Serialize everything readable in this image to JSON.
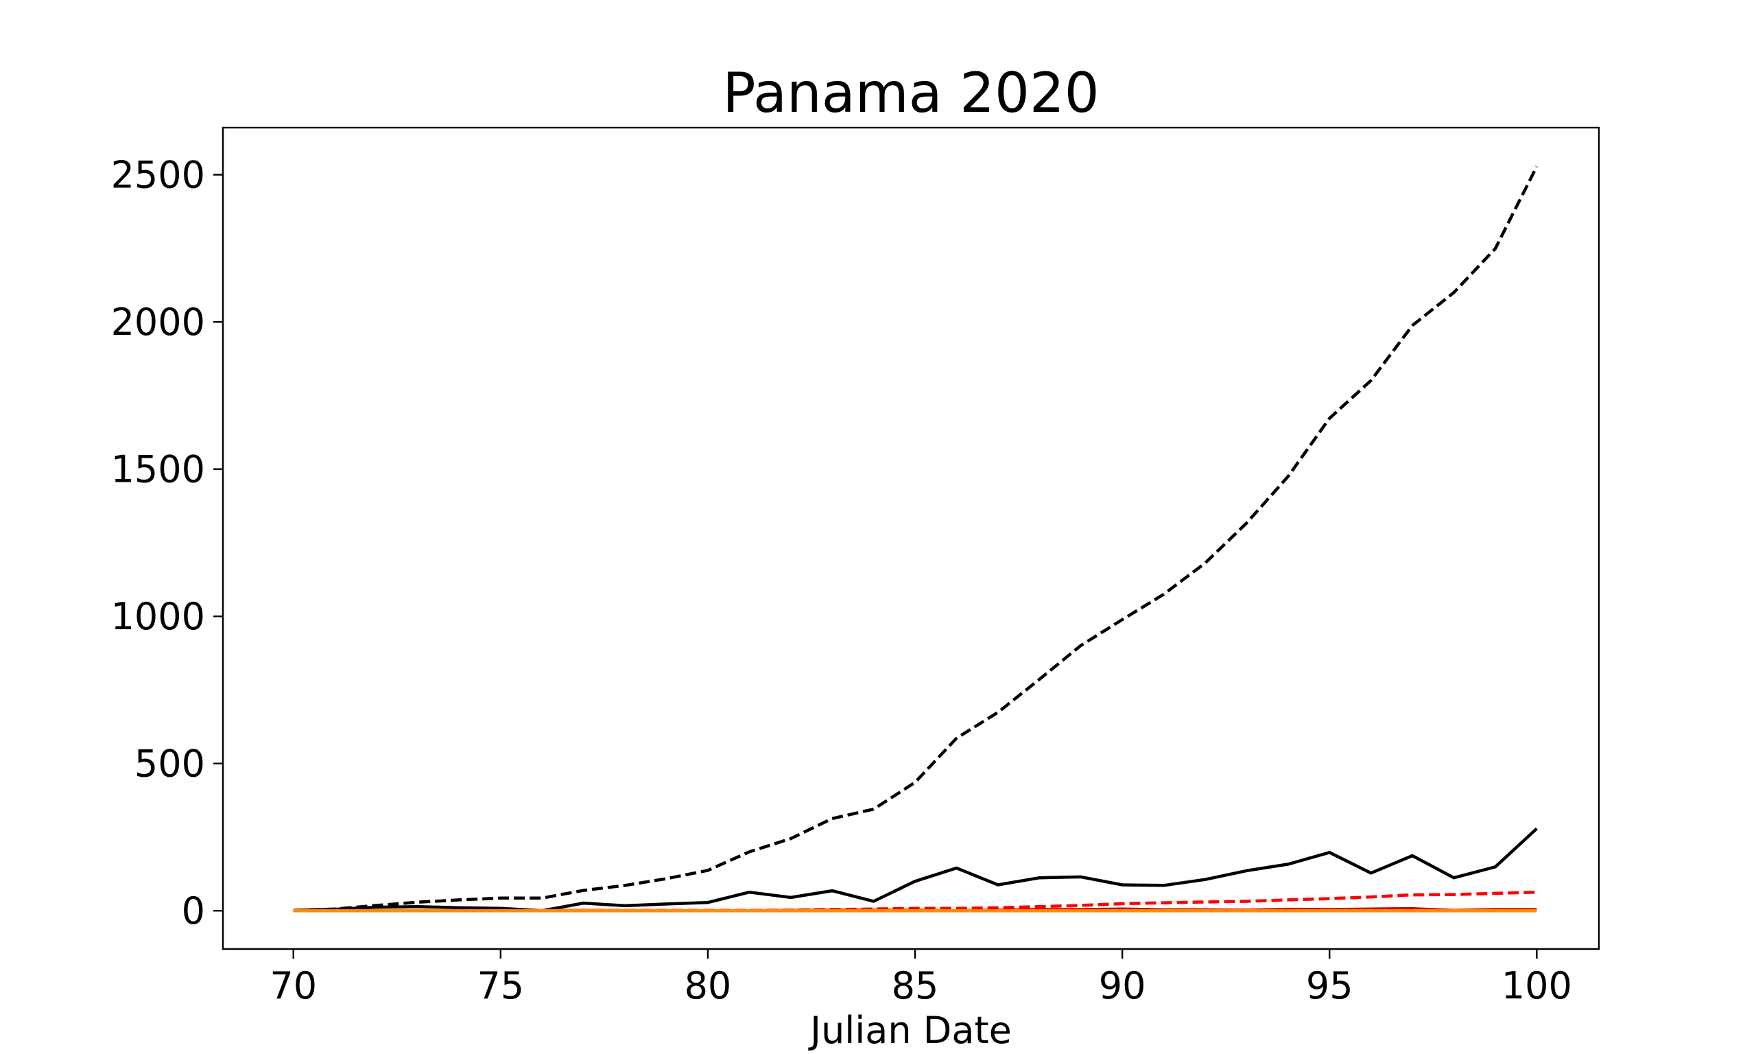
{
  "chart_data": {
    "type": "line",
    "title": "Panama 2020",
    "xlabel": "Julian Date",
    "ylabel": "",
    "xlim": [
      68.3,
      101.5
    ],
    "ylim": [
      -130,
      2660
    ],
    "xticks": [
      70,
      75,
      80,
      85,
      90,
      95,
      100
    ],
    "yticks": [
      0,
      500,
      1000,
      1500,
      2000,
      2500
    ],
    "grid": false,
    "legend": "none",
    "x": [
      70,
      71,
      72,
      73,
      74,
      75,
      76,
      77,
      78,
      79,
      80,
      81,
      82,
      83,
      84,
      85,
      86,
      87,
      88,
      89,
      90,
      91,
      92,
      93,
      94,
      95,
      96,
      97,
      98,
      99,
      100
    ],
    "series": [
      {
        "color": "#000000",
        "dash": "dashed",
        "values": [
          1,
          6,
          18,
          29,
          37,
          43,
          43,
          69,
          86,
          109,
          137,
          200,
          245,
          313,
          345,
          436,
          586,
          674,
          786,
          901,
          989,
          1075,
          1181,
          1317,
          1475,
          1673,
          1801,
          1988,
          2100,
          2249,
          2528
        ]
      },
      {
        "color": "#000000",
        "dash": "solid",
        "values": [
          1,
          5,
          12,
          14,
          10,
          8,
          0,
          26,
          17,
          23,
          28,
          63,
          45,
          68,
          32,
          100,
          145,
          88,
          112,
          115,
          88,
          86,
          106,
          136,
          158,
          198,
          128,
          187,
          112,
          149,
          279
        ]
      },
      {
        "color": "#ff0000",
        "dash": "dashed",
        "values": [
          0,
          0,
          0,
          0,
          0,
          0,
          0,
          1,
          1,
          1,
          1,
          1,
          2,
          4,
          6,
          8,
          8,
          10,
          14,
          18,
          24,
          27,
          30,
          32,
          37,
          41,
          47,
          54,
          55,
          59,
          63
        ]
      },
      {
        "color": "#cc0000",
        "dash": "solid",
        "values": [
          0,
          0,
          0,
          0,
          0,
          0,
          0,
          1,
          0,
          0,
          0,
          0,
          1,
          2,
          2,
          2,
          0,
          2,
          4,
          4,
          6,
          3,
          3,
          2,
          5,
          4,
          6,
          7,
          1,
          4,
          4
        ]
      },
      {
        "color": "#ff8c00",
        "dash": "solid",
        "values": [
          0,
          0,
          0,
          0,
          0,
          0,
          0,
          0,
          0,
          0,
          0,
          0,
          0,
          0,
          0,
          0,
          0,
          0,
          0,
          0,
          0,
          0,
          0,
          0,
          0,
          0,
          0,
          0,
          0,
          0,
          0
        ]
      }
    ]
  }
}
